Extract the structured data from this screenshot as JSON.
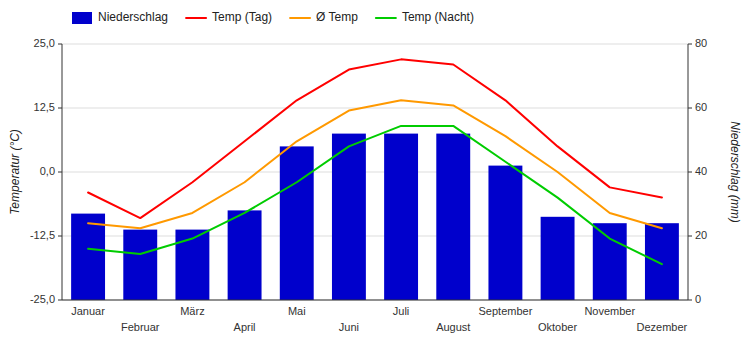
{
  "chart_data": {
    "type": "bar",
    "categories": [
      "Januar",
      "Februar",
      "März",
      "April",
      "Mai",
      "Juni",
      "Juli",
      "August",
      "September",
      "Oktober",
      "November",
      "Dezember"
    ],
    "series": [
      {
        "name": "Niederschlag",
        "type": "bar",
        "axis": "y2",
        "color": "#0000cc",
        "values": [
          27,
          22,
          22,
          28,
          48,
          52,
          52,
          52,
          42,
          26,
          24,
          24
        ]
      },
      {
        "name": "Temp (Tag)",
        "type": "line",
        "color": "#ff0000",
        "values": [
          -4,
          -9,
          -2,
          6,
          14,
          20,
          22,
          21,
          14,
          5,
          -3,
          -5
        ]
      },
      {
        "name": "Ø Temp",
        "type": "line",
        "color": "#ff9900",
        "values": [
          -10,
          -11,
          -8,
          -2,
          6,
          12,
          14,
          13,
          7,
          0,
          -8,
          -11
        ]
      },
      {
        "name": "Temp (Nacht)",
        "type": "line",
        "color": "#00cc00",
        "values": [
          -15,
          -16,
          -13,
          -8,
          -2,
          5,
          9,
          9,
          2,
          -5,
          -13,
          -18
        ]
      }
    ],
    "ylabel": "Temperatur (°C)",
    "y2label": "Niederschlag (mm)",
    "ylim": [
      -25,
      25
    ],
    "yticks": [
      {
        "value": -25,
        "label": "-25,0"
      },
      {
        "value": -12.5,
        "label": "-12,5"
      },
      {
        "value": 0,
        "label": "0,0"
      },
      {
        "value": 12.5,
        "label": "12,5"
      },
      {
        "value": 25,
        "label": "25,0"
      }
    ],
    "y2lim": [
      0,
      80
    ],
    "y2ticks": [
      0,
      20,
      40,
      60,
      80
    ],
    "grid": true,
    "legend": "top"
  }
}
